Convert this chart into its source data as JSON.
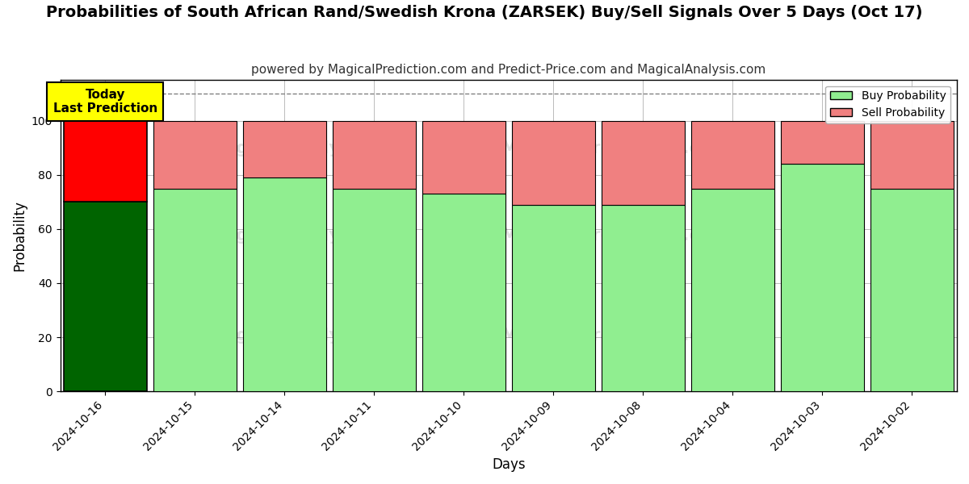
{
  "title": "Probabilities of South African Rand/Swedish Krona (ZARSEK) Buy/Sell Signals Over 5 Days (Oct 17)",
  "subtitle": "powered by MagicalPrediction.com and Predict-Price.com and MagicalAnalysis.com",
  "xlabel": "Days",
  "ylabel": "Probability",
  "categories": [
    "2024-10-16",
    "2024-10-15",
    "2024-10-14",
    "2024-10-11",
    "2024-10-10",
    "2024-10-09",
    "2024-10-08",
    "2024-10-04",
    "2024-10-03",
    "2024-10-02"
  ],
  "buy_values": [
    70,
    75,
    79,
    75,
    73,
    69,
    69,
    75,
    84,
    75
  ],
  "sell_values": [
    30,
    25,
    21,
    25,
    27,
    31,
    31,
    25,
    16,
    25
  ],
  "today_index": 0,
  "today_label": "Today\nLast Prediction",
  "buy_color_today": "#006400",
  "sell_color_today": "#FF0000",
  "buy_color_normal": "#90EE90",
  "sell_color_normal": "#F08080",
  "today_label_bg": "#FFFF00",
  "ylim": [
    0,
    115
  ],
  "yticks": [
    0,
    20,
    40,
    60,
    80,
    100
  ],
  "grid_color": "#BBBBBB",
  "background_color": "#FFFFFF",
  "legend_buy_label": "Buy Probability",
  "legend_sell_label": "Sell Probability",
  "title_fontsize": 14,
  "subtitle_fontsize": 11,
  "axis_label_fontsize": 12,
  "tick_fontsize": 10,
  "bar_width": 0.93
}
